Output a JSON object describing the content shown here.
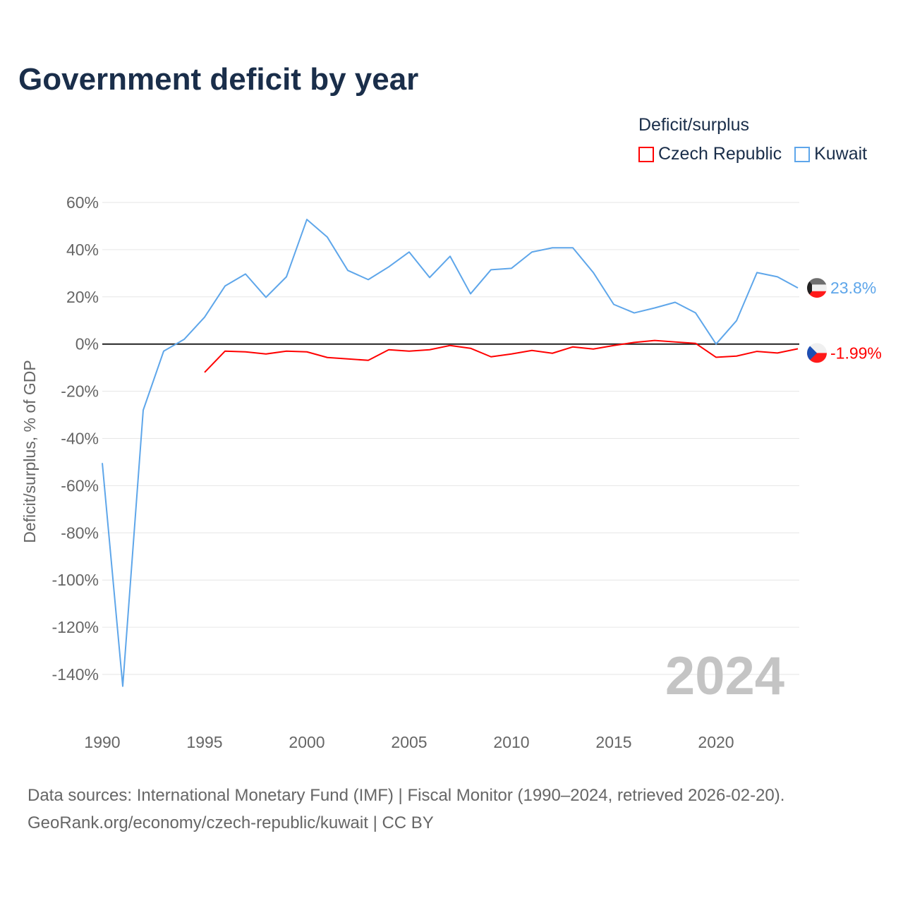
{
  "chart_data": {
    "type": "line",
    "title": "Government deficit by year",
    "ylabel": "Deficit/surplus, % of GDP",
    "xlabel": "",
    "legend_title": "Deficit/surplus",
    "legend_placement": "top-right",
    "ylim": [
      -140,
      60
    ],
    "yticks": [
      60,
      40,
      20,
      0,
      -20,
      -40,
      -60,
      -80,
      -100,
      -120,
      -140
    ],
    "ytick_labels": [
      "60%",
      "40%",
      "20%",
      "0%",
      "-20%",
      "-40%",
      "-60%",
      "-80%",
      "-100%",
      "-120%",
      "-140%"
    ],
    "xlim": [
      1990,
      2024
    ],
    "xticks": [
      1990,
      1995,
      2000,
      2005,
      2010,
      2015,
      2020
    ],
    "xtick_labels": [
      "1990",
      "1995",
      "2000",
      "2005",
      "2010",
      "2015",
      "2020"
    ],
    "year_watermark": "2024",
    "grid": true,
    "series": [
      {
        "name": "Czech Republic",
        "color": "#ff0000",
        "end_label": "-1.99%",
        "x": [
          1995,
          1996,
          1997,
          1998,
          1999,
          2000,
          2001,
          2002,
          2003,
          2004,
          2005,
          2006,
          2007,
          2008,
          2009,
          2010,
          2011,
          2012,
          2013,
          2014,
          2015,
          2016,
          2017,
          2018,
          2019,
          2020,
          2021,
          2022,
          2023,
          2024
        ],
        "values": [
          -12,
          -3,
          -3.3,
          -4.2,
          -3,
          -3.3,
          -5.7,
          -6.3,
          -6.9,
          -2.4,
          -3,
          -2.4,
          -0.6,
          -1.8,
          -5.4,
          -4.2,
          -2.7,
          -3.9,
          -1.2,
          -2.1,
          -0.6,
          0.7,
          1.5,
          0.9,
          0.3,
          -5.6,
          -5.1,
          -3.1,
          -3.8,
          -1.99
        ]
      },
      {
        "name": "Kuwait",
        "color": "#5ea6ea",
        "end_label": "23.8%",
        "x": [
          1990,
          1991,
          1992,
          1993,
          1994,
          1995,
          1996,
          1997,
          1998,
          1999,
          2000,
          2001,
          2002,
          2003,
          2004,
          2005,
          2006,
          2007,
          2008,
          2009,
          2010,
          2011,
          2012,
          2013,
          2014,
          2015,
          2016,
          2017,
          2018,
          2019,
          2020,
          2021,
          2022,
          2023,
          2024
        ],
        "values": [
          -50.4,
          -145,
          -28,
          -3,
          2,
          11.4,
          24.6,
          29.7,
          19.8,
          28.5,
          52.8,
          45.3,
          31.2,
          27.3,
          32.7,
          39,
          28.2,
          37.2,
          21.3,
          31.5,
          32.1,
          39,
          40.8,
          40.8,
          30.3,
          16.8,
          13.2,
          15.3,
          17.7,
          13.2,
          0,
          9.9,
          30.3,
          28.5,
          23.8
        ]
      }
    ]
  },
  "footer": {
    "sources": "Data sources: International Monetary Fund (IMF) | Fiscal Monitor (1990–2024, retrieved 2026-02-20).",
    "attribution": "GeoRank.org/economy/czech-republic/kuwait | CC BY"
  }
}
